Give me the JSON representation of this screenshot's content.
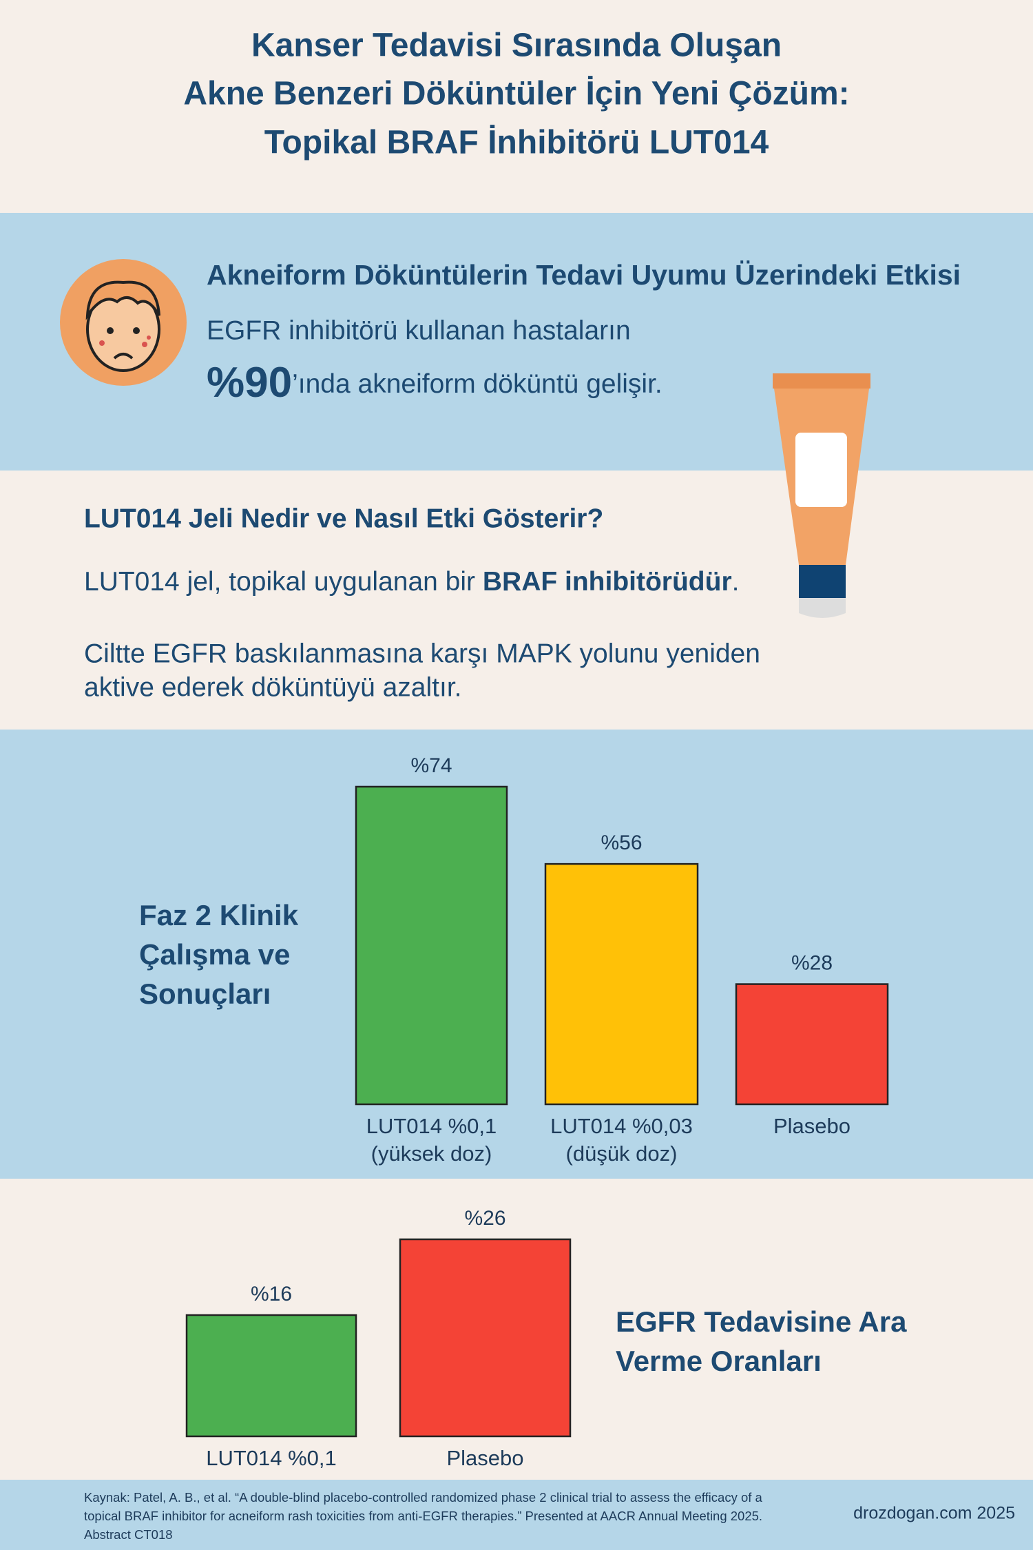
{
  "header": {
    "title_lines": [
      "Kanser Tedavisi Sırasında Oluşan",
      "Akne Benzeri Döküntüler İçin Yeni Çözüm:",
      "Topikal BRAF İnhibitörü LUT014"
    ]
  },
  "impact": {
    "heading": "Akneiform Döküntülerin Tedavi Uyumu Üzerindeki Etkisi",
    "text": "EGFR inhibitörü kullanan hastaların",
    "stat": "%90",
    "stat_text": "’ında akneiform döküntü gelişir."
  },
  "about": {
    "heading": "LUT014 Jeli Nedir ve Nasıl Etki Gösterir?",
    "para1": {
      "start": "LUT014 jel, topikal uygulanan bir ",
      "bold": "BRAF inhibitörüdür",
      "end": "."
    },
    "para2_lines": [
      "Ciltte EGFR baskılanmasına karşı MAPK yolunu yeniden",
      "aktive ederek döküntüyü azaltır."
    ]
  },
  "chart_data": [
    {
      "type": "bar",
      "title": "Faz 2 Klinik Çalışma ve Sonuçları",
      "categories": [
        "LUT014 %0,1 (yüksek doz)",
        "LUT014 %0,03 (düşük doz)",
        "Plasebo"
      ],
      "values": [
        74,
        56,
        28
      ],
      "value_labels": [
        "%74",
        "%56",
        "%28"
      ],
      "colors": [
        "#4caf50",
        "#ffc107",
        "#f44336"
      ]
    },
    {
      "type": "bar",
      "title": "EGFR Tedavisine Ara Verme Oranları",
      "categories": [
        "LUT014 %0,1",
        "Plasebo"
      ],
      "values": [
        16,
        26
      ],
      "value_labels": [
        "%16",
        "%26"
      ],
      "colors": [
        "#4caf50",
        "#f44336"
      ]
    }
  ],
  "footer": {
    "source": "Kaynak: Patel, A. B., et al. “A double-blind placebo-controlled randomized phase 2 clinical trial to assess the efficacy of a topical BRAF inhibitor for acneiform rash toxicities from anti-EGFR therapies.” Presented at AACR Annual Meeting 2025. Abstract CT018",
    "credit": "drozdogan.com  2025"
  }
}
